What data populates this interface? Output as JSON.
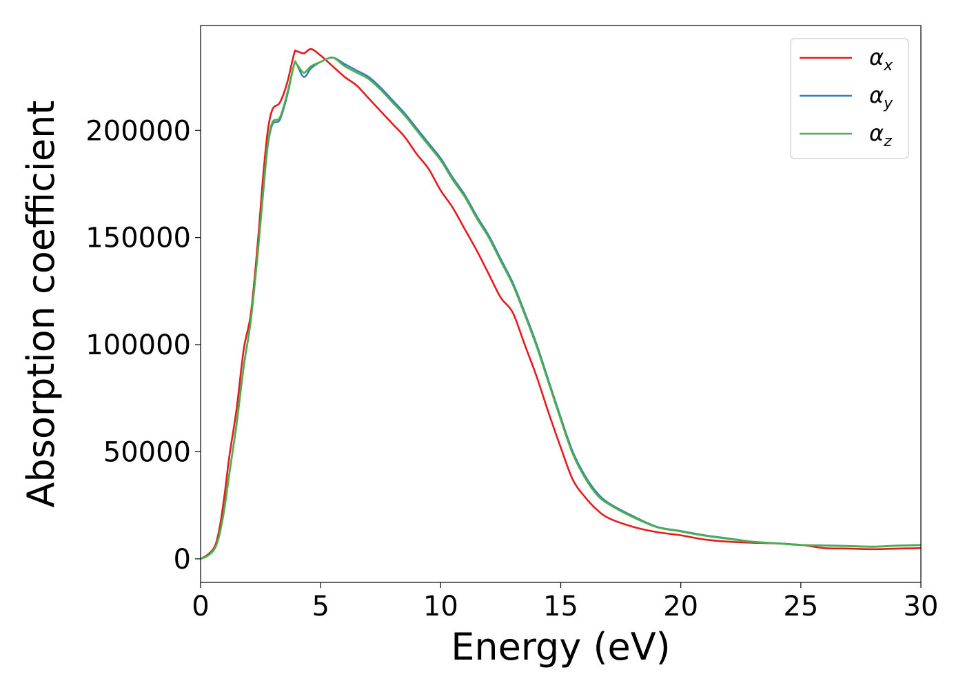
{
  "chart_data": {
    "type": "line",
    "title": "",
    "xlabel": "Energy (eV)",
    "ylabel": "Absorption coefficient",
    "xlim": [
      0,
      30
    ],
    "ylim": [
      -11000,
      249000
    ],
    "xticks": [
      0,
      5,
      10,
      15,
      20,
      25,
      30
    ],
    "xtick_labels": [
      "0",
      "5",
      "10",
      "15",
      "20",
      "25",
      "30"
    ],
    "yticks": [
      0,
      50000,
      100000,
      150000,
      200000
    ],
    "ytick_labels": [
      "0",
      "50000",
      "100000",
      "150000",
      "200000"
    ],
    "grid": false,
    "legend_position": "top-right",
    "series": [
      {
        "name": "α",
        "subscript": "x",
        "color": "#e41a1c",
        "points": [
          [
            0,
            0
          ],
          [
            0.3,
            2000
          ],
          [
            0.6,
            6000
          ],
          [
            0.8,
            15000
          ],
          [
            1.0,
            30000
          ],
          [
            1.2,
            48000
          ],
          [
            1.5,
            70000
          ],
          [
            1.8,
            98000
          ],
          [
            2.1,
            115000
          ],
          [
            2.4,
            150000
          ],
          [
            2.6,
            178000
          ],
          [
            2.8,
            200000
          ],
          [
            3.0,
            210000
          ],
          [
            3.3,
            213000
          ],
          [
            3.6,
            222000
          ],
          [
            3.9,
            236000
          ],
          [
            4.0,
            237000
          ],
          [
            4.3,
            236000
          ],
          [
            4.6,
            238000
          ],
          [
            5.0,
            235000
          ],
          [
            5.5,
            230000
          ],
          [
            6.0,
            225000
          ],
          [
            6.5,
            221000
          ],
          [
            7.0,
            215000
          ],
          [
            7.5,
            209000
          ],
          [
            8.0,
            203000
          ],
          [
            8.5,
            197000
          ],
          [
            9.0,
            189000
          ],
          [
            9.5,
            182000
          ],
          [
            10.0,
            172000
          ],
          [
            10.5,
            164000
          ],
          [
            11.0,
            154000
          ],
          [
            11.5,
            144000
          ],
          [
            12.0,
            133000
          ],
          [
            12.5,
            122000
          ],
          [
            13.0,
            115000
          ],
          [
            13.5,
            100000
          ],
          [
            14.0,
            85000
          ],
          [
            14.5,
            68000
          ],
          [
            15.0,
            52000
          ],
          [
            15.5,
            37000
          ],
          [
            16.0,
            29000
          ],
          [
            16.5,
            23000
          ],
          [
            17.0,
            19000
          ],
          [
            18.0,
            15000
          ],
          [
            19.0,
            12500
          ],
          [
            20.0,
            11000
          ],
          [
            21.0,
            9000
          ],
          [
            22.0,
            8000
          ],
          [
            23.0,
            7500
          ],
          [
            24.0,
            7200
          ],
          [
            25.0,
            6500
          ],
          [
            26.0,
            5000
          ],
          [
            27.0,
            4800
          ],
          [
            28.0,
            4500
          ],
          [
            29.0,
            4800
          ],
          [
            30.0,
            5000
          ]
        ]
      },
      {
        "name": "α",
        "subscript": "y",
        "color": "#377eb8",
        "points": [
          [
            0,
            0
          ],
          [
            0.3,
            1500
          ],
          [
            0.6,
            5000
          ],
          [
            0.8,
            12000
          ],
          [
            1.0,
            24000
          ],
          [
            1.2,
            40000
          ],
          [
            1.5,
            63000
          ],
          [
            1.8,
            90000
          ],
          [
            2.1,
            112000
          ],
          [
            2.4,
            145000
          ],
          [
            2.6,
            170000
          ],
          [
            2.8,
            193000
          ],
          [
            3.0,
            203000
          ],
          [
            3.3,
            205000
          ],
          [
            3.6,
            216000
          ],
          [
            3.9,
            231000
          ],
          [
            4.0,
            231000
          ],
          [
            4.3,
            225000
          ],
          [
            4.6,
            229000
          ],
          [
            5.0,
            232000
          ],
          [
            5.5,
            234000
          ],
          [
            6.0,
            231000
          ],
          [
            6.5,
            228000
          ],
          [
            7.0,
            225000
          ],
          [
            7.5,
            220000
          ],
          [
            8.0,
            214000
          ],
          [
            8.5,
            208000
          ],
          [
            9.0,
            201000
          ],
          [
            9.5,
            194000
          ],
          [
            10.0,
            187000
          ],
          [
            10.5,
            178000
          ],
          [
            11.0,
            170000
          ],
          [
            11.5,
            160000
          ],
          [
            12.0,
            151000
          ],
          [
            12.5,
            140000
          ],
          [
            13.0,
            129000
          ],
          [
            13.5,
            115000
          ],
          [
            14.0,
            100000
          ],
          [
            14.5,
            83000
          ],
          [
            15.0,
            66000
          ],
          [
            15.5,
            50000
          ],
          [
            16.0,
            39000
          ],
          [
            16.5,
            31000
          ],
          [
            17.0,
            26000
          ],
          [
            18.0,
            20000
          ],
          [
            19.0,
            15000
          ],
          [
            20.0,
            13000
          ],
          [
            21.0,
            11000
          ],
          [
            22.0,
            9500
          ],
          [
            23.0,
            8000
          ],
          [
            24.0,
            7300
          ],
          [
            25.0,
            6500
          ],
          [
            26.0,
            6300
          ],
          [
            27.0,
            6000
          ],
          [
            28.0,
            5700
          ],
          [
            29.0,
            6200
          ],
          [
            30.0,
            6500
          ]
        ]
      },
      {
        "name": "α",
        "subscript": "z",
        "color": "#4daf4a",
        "points": [
          [
            0,
            0
          ],
          [
            0.3,
            1500
          ],
          [
            0.6,
            5000
          ],
          [
            0.8,
            12000
          ],
          [
            1.0,
            24000
          ],
          [
            1.2,
            40000
          ],
          [
            1.5,
            63000
          ],
          [
            1.8,
            90000
          ],
          [
            2.1,
            112000
          ],
          [
            2.4,
            145000
          ],
          [
            2.6,
            171000
          ],
          [
            2.8,
            194000
          ],
          [
            3.0,
            204000
          ],
          [
            3.3,
            206000
          ],
          [
            3.6,
            217000
          ],
          [
            3.9,
            231000
          ],
          [
            4.0,
            231000
          ],
          [
            4.3,
            227000
          ],
          [
            4.6,
            230000
          ],
          [
            5.0,
            232000
          ],
          [
            5.5,
            234000
          ],
          [
            6.0,
            230000
          ],
          [
            6.5,
            227000
          ],
          [
            7.0,
            224000
          ],
          [
            7.5,
            219000
          ],
          [
            8.0,
            213000
          ],
          [
            8.5,
            207000
          ],
          [
            9.0,
            200000
          ],
          [
            9.5,
            193000
          ],
          [
            10.0,
            186000
          ],
          [
            10.5,
            177000
          ],
          [
            11.0,
            169000
          ],
          [
            11.5,
            159000
          ],
          [
            12.0,
            150000
          ],
          [
            12.5,
            139000
          ],
          [
            13.0,
            128000
          ],
          [
            13.5,
            114000
          ],
          [
            14.0,
            99000
          ],
          [
            14.5,
            82000
          ],
          [
            15.0,
            65000
          ],
          [
            15.5,
            49000
          ],
          [
            16.0,
            38000
          ],
          [
            16.5,
            30000
          ],
          [
            17.0,
            25500
          ],
          [
            18.0,
            19500
          ],
          [
            19.0,
            14800
          ],
          [
            20.0,
            12800
          ],
          [
            21.0,
            10800
          ],
          [
            22.0,
            9300
          ],
          [
            23.0,
            7900
          ],
          [
            24.0,
            7200
          ],
          [
            25.0,
            6400
          ],
          [
            26.0,
            6200
          ],
          [
            27.0,
            5900
          ],
          [
            28.0,
            5600
          ],
          [
            29.0,
            6100
          ],
          [
            30.0,
            6400
          ]
        ]
      }
    ]
  }
}
